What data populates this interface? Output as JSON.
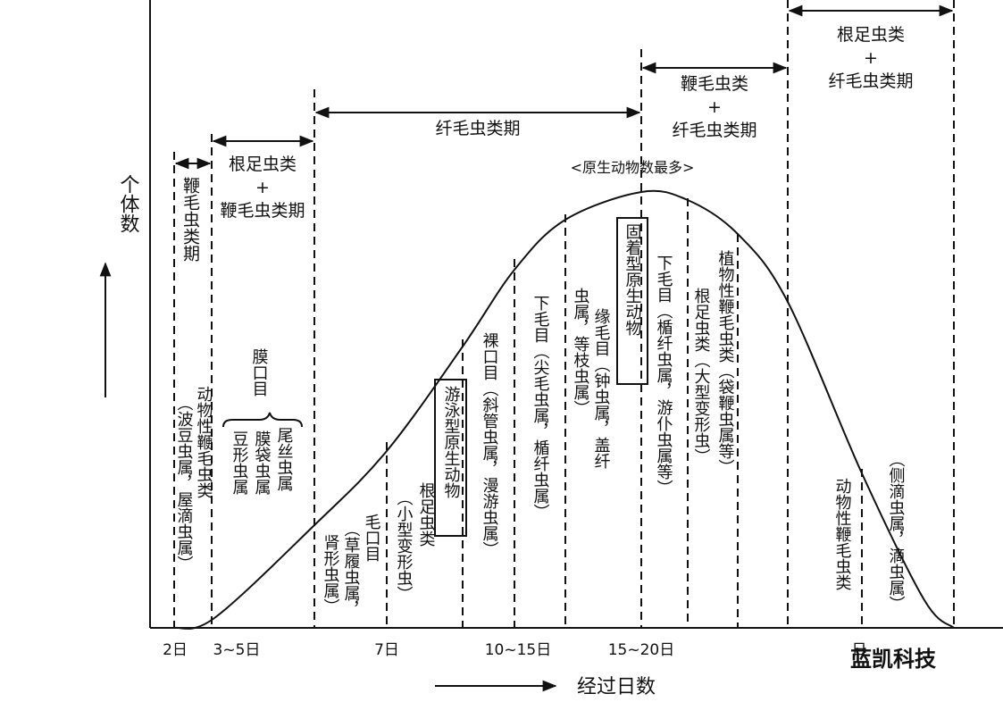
{
  "axis": {
    "y_label": "个体数",
    "x_label": "经过日数",
    "x_ticks": [
      "2日",
      "3~5日",
      "7日",
      "10~15日",
      "15~20日",
      "日"
    ]
  },
  "periods": [
    [
      "鞭毛虫类期"
    ],
    [
      "根足虫类",
      "+",
      "鞭毛虫类期"
    ],
    [
      "纤毛虫类期"
    ],
    [
      "鞭毛虫类",
      "+",
      "纤毛虫类期"
    ],
    [
      "根足虫类",
      "+",
      "纤毛虫类期"
    ]
  ],
  "peak_note": "<原生动物数最多>",
  "groups": [
    [
      "动物性鞭毛虫类",
      "（波豆虫属，屋滴虫属）"
    ],
    [
      "膜口目"
    ],
    [
      "尾丝虫属",
      "膜袋虫属",
      "豆形虫属"
    ],
    [
      "毛口目",
      "（草履虫属，",
      "肾形虫属）"
    ],
    [
      "根足虫类",
      "（小型变形虫）"
    ],
    [
      "游泳型原生动物"
    ],
    [
      "裸口目（斜管虫属，漫游虫属）"
    ],
    [
      "下毛目（尖毛虫属，楯纤虫属）"
    ],
    [
      "缘毛目（钟虫属，盖纤",
      "虫属，等枝虫属）"
    ],
    [
      "固着型原生动物"
    ],
    [
      "下毛目（楯纤虫属，游仆虫属等）"
    ],
    [
      "根足虫类（大型变形虫）"
    ],
    [
      "植物性鞭毛虫类（袋鞭虫属等）"
    ],
    [
      "动物性鞭毛虫类"
    ],
    [
      "（侧滴虫属，滴虫属）"
    ]
  ],
  "watermark": "蓝凯科技"
}
